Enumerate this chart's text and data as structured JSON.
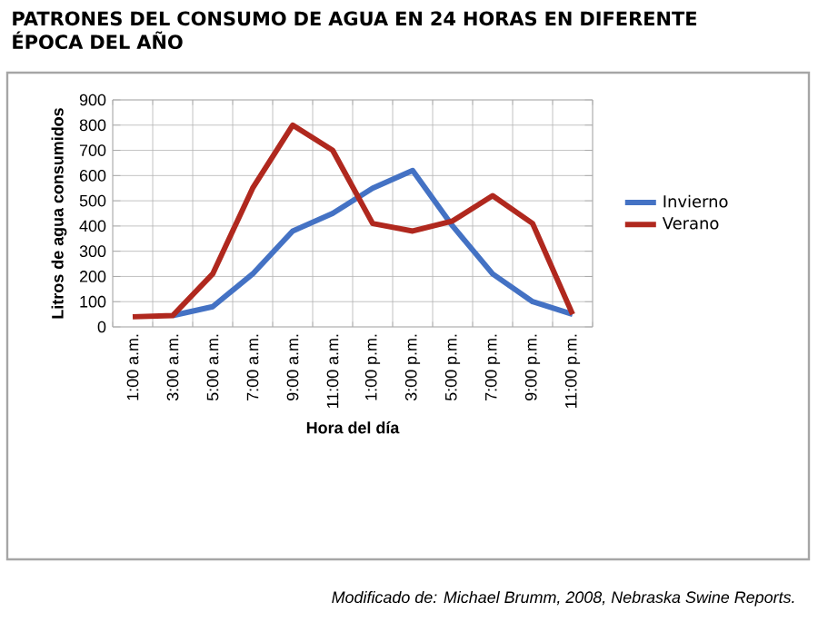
{
  "chart_data": {
    "type": "line",
    "title": "PATRONES DEL CONSUMO DE AGUA EN 24 HORAS EN DIFERENTE ÉPOCA DEL AÑO",
    "xlabel": "Hora del día",
    "ylabel": "Litros de agua consumidos",
    "categories": [
      "1:00 a.m.",
      "3:00 a.m.",
      "5:00 a.m.",
      "7:00 a.m.",
      "9:00 a.m.",
      "11:00 a.m.",
      "1:00 p.m.",
      "3:00 p.m.",
      "5:00 p.m.",
      "7:00 p.m.",
      "9:00 p.m.",
      "11:00 p.m."
    ],
    "series": [
      {
        "name": "Invierno",
        "color": "#4472c4",
        "values": [
          null,
          45,
          80,
          210,
          380,
          450,
          550,
          620,
          400,
          210,
          100,
          50
        ]
      },
      {
        "name": "Verano",
        "color": "#b0281e",
        "values": [
          40,
          45,
          210,
          550,
          800,
          700,
          410,
          380,
          420,
          520,
          410,
          50
        ]
      }
    ],
    "ylim": [
      0,
      900
    ],
    "yticks": [
      0,
      100,
      200,
      300,
      400,
      500,
      600,
      700,
      800,
      900
    ],
    "grid": true,
    "legend": "right",
    "marker": "none",
    "line_style": "solid",
    "annotations": [
      "*Modificado de: Michael Brumm, 2008, Nebraska Swine Reports.*"
    ]
  }
}
